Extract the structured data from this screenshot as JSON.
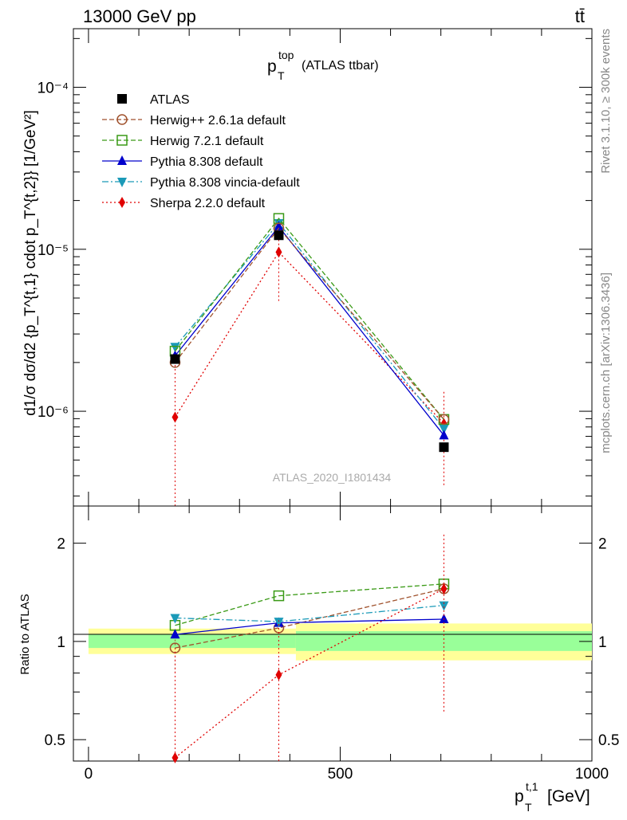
{
  "header": {
    "energy": "13000 GeV pp",
    "process": "tt̄"
  },
  "side_labels": {
    "rivet": "Rivet 3.1.10, ≥ 300k events",
    "source": "mcplots.cern.ch [arXiv:1306.3436]"
  },
  "chart_data": [
    {
      "type": "scatter",
      "title": "p_T^top (ATLAS ttbar)",
      "title_main": "p",
      "title_sup": "top",
      "title_sub": "T",
      "title_suffix": "(ATLAS ttbar)",
      "watermark": "ATLAS_2020_I1801434",
      "ylabel": "d1/σ dσ/d2 {p_T^{t,1} cdot p_T^{t,2}} [1/GeV²]",
      "yscale": "log",
      "ylim": [
        2.6e-07,
        0.00023
      ],
      "xlim": [
        -30,
        1000
      ],
      "ytick_labels": [
        "10⁻⁶",
        "10⁻⁵",
        "10⁻⁴"
      ],
      "x": [
        172,
        378,
        706
      ],
      "legend_position": "top-left",
      "series": [
        {
          "name": "ATLAS",
          "color": "#000000",
          "marker": "square-filled",
          "line": "none",
          "values": [
            2.1e-06,
            1.22e-05,
            6e-07
          ]
        },
        {
          "name": "Herwig++ 2.6.1a default",
          "color": "#a0522d",
          "marker": "circle-open",
          "line": "dashed",
          "values": [
            2e-06,
            1.35e-05,
            8.9e-07
          ],
          "err_lo": [
            null,
            null,
            null
          ],
          "err_hi": [
            null,
            null,
            null
          ]
        },
        {
          "name": "Herwig 7.2.1 default",
          "color": "#3a9a16",
          "marker": "square-open",
          "line": "dashed",
          "values": [
            2.35e-06,
            1.55e-05,
            8.9e-07
          ]
        },
        {
          "name": "Pythia 8.308 default",
          "color": "#0000cc",
          "marker": "triangle-up",
          "line": "solid",
          "values": [
            2.2e-06,
            1.38e-05,
            7.1e-07
          ]
        },
        {
          "name": "Pythia 8.308 vincia-default",
          "color": "#1b9ab8",
          "marker": "triangle-down",
          "line": "dashdot",
          "values": [
            2.5e-06,
            1.45e-05,
            7.8e-07
          ]
        },
        {
          "name": "Sherpa 2.2.0 default",
          "color": "#e00000",
          "marker": "diamond",
          "line": "dotted",
          "values": [
            9.2e-07,
            9.6e-06,
            8.4e-07
          ],
          "err_lo": [
            2.6e-07,
            4.8e-06,
            3.5e-07
          ],
          "err_hi": [
            2e-06,
            1.5e-05,
            1.35e-06
          ]
        }
      ]
    },
    {
      "type": "scatter",
      "ylabel": "Ratio to ATLAS",
      "xlabel": "p_T^{t,1} [GeV]",
      "xlabel_main": "p",
      "xlabel_sup": "t,1",
      "xlabel_sub": "T",
      "xlabel_suffix": "[GeV]",
      "yscale": "log",
      "ylim": [
        0.43,
        2.6
      ],
      "xlim": [
        -30,
        1000
      ],
      "ytick_labels": [
        "0.5",
        "1",
        "2"
      ],
      "xtick_labels": [
        "0",
        "500",
        "1000"
      ],
      "x": [
        172,
        378,
        706
      ],
      "bands": [
        {
          "x0": 0,
          "x1": 412,
          "inner": [
            0.955,
            1.055
          ],
          "outer": [
            0.915,
            1.095
          ]
        },
        {
          "x0": 412,
          "x1": 1000,
          "inner": [
            0.935,
            1.075
          ],
          "outer": [
            0.875,
            1.135
          ]
        }
      ],
      "series": [
        {
          "name": "Herwig++ 2.6.1a default",
          "color": "#a0522d",
          "values": [
            0.955,
            1.1,
            1.45
          ],
          "err_lo": [
            0.8,
            null,
            null
          ],
          "err_hi": [
            1.05,
            null,
            null
          ]
        },
        {
          "name": "Herwig 7.2.1 default",
          "color": "#3a9a16",
          "values": [
            1.12,
            1.38,
            1.5
          ]
        },
        {
          "name": "Pythia 8.308 default",
          "color": "#0000cc",
          "values": [
            1.05,
            1.14,
            1.17
          ]
        },
        {
          "name": "Pythia 8.308 vincia-default",
          "color": "#1b9ab8",
          "values": [
            1.18,
            1.15,
            1.29
          ]
        },
        {
          "name": "Sherpa 2.2.0 default",
          "color": "#e00000",
          "values": [
            0.44,
            0.79,
            1.45
          ],
          "err_lo": [
            0.41,
            0.41,
            0.61
          ],
          "err_hi": [
            0.95,
            1.16,
            2.15
          ]
        }
      ]
    }
  ]
}
